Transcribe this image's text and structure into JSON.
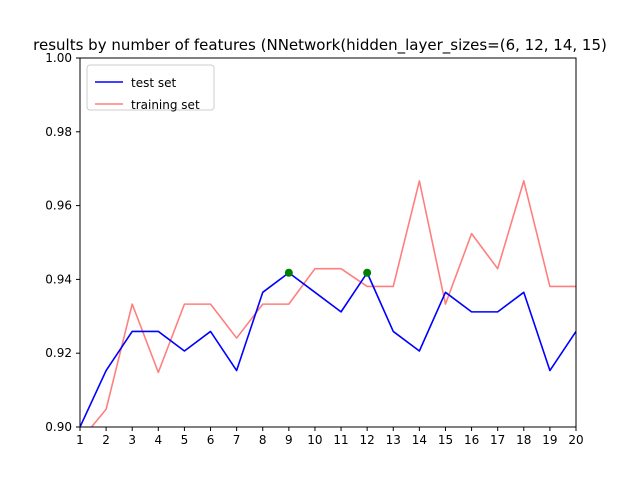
{
  "chart_data": {
    "type": "line",
    "title": "results by number of features (NNetwork(hidden_layer_sizes=(6, 12, 14, 15)",
    "xlabel": "",
    "ylabel": "",
    "xlim": [
      1,
      20
    ],
    "ylim": [
      0.9,
      1.0
    ],
    "x": [
      1,
      2,
      3,
      4,
      5,
      6,
      7,
      8,
      9,
      10,
      11,
      12,
      13,
      14,
      15,
      16,
      17,
      18,
      19,
      20
    ],
    "x_ticks": [
      "1",
      "2",
      "3",
      "4",
      "5",
      "6",
      "7",
      "8",
      "9",
      "10",
      "11",
      "12",
      "13",
      "14",
      "15",
      "16",
      "17",
      "18",
      "19",
      "20"
    ],
    "y_ticks": [
      "0.90",
      "0.92",
      "0.94",
      "0.96",
      "0.98",
      "1.00"
    ],
    "y_tick_values": [
      0.9,
      0.92,
      0.94,
      0.96,
      0.98,
      1.0
    ],
    "grid": false,
    "legend_position": "top-left",
    "series": [
      {
        "name": "test set",
        "color": "#0000ff",
        "values": [
          0.9,
          0.9153,
          0.9259,
          0.9259,
          0.9206,
          0.9259,
          0.9153,
          0.9365,
          0.9418,
          0.9365,
          0.9312,
          0.9418,
          0.9259,
          0.9206,
          0.9365,
          0.9312,
          0.9312,
          0.9365,
          0.9153,
          0.9259
        ]
      },
      {
        "name": "training set",
        "color": "#ff7f7f",
        "values": [
          0.8962,
          0.9048,
          0.9333,
          0.9148,
          0.9333,
          0.9333,
          0.9241,
          0.9333,
          0.9333,
          0.9429,
          0.9429,
          0.9381,
          0.9381,
          0.9667,
          0.9333,
          0.9524,
          0.9429,
          0.9667,
          0.9381,
          0.9381
        ]
      }
    ],
    "markers": [
      {
        "x": 9,
        "y": 0.9418,
        "color": "#008000"
      },
      {
        "x": 12,
        "y": 0.9418,
        "color": "#008000"
      }
    ]
  }
}
